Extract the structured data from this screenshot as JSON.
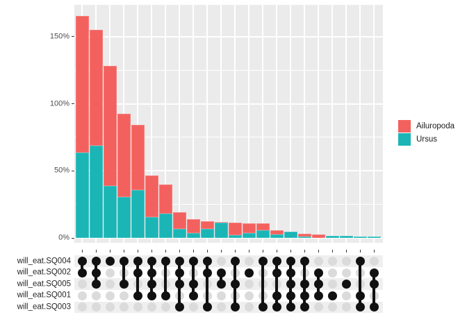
{
  "chart_data": {
    "type": "bar",
    "subtype": "upset-stacked-percent",
    "title": "",
    "xlabel": "",
    "ylabel": "",
    "units": "percent",
    "ylim": [
      0,
      173
    ],
    "grid": "on",
    "y_ticks": [
      {
        "label": "0%",
        "value": 0
      },
      {
        "label": "50%",
        "value": 50
      },
      {
        "label": "100%",
        "value": 100
      },
      {
        "label": "150%",
        "value": 150
      }
    ],
    "y_minor_ticks": [
      25,
      75,
      125
    ],
    "sets": [
      "will_eat.SQ004",
      "will_eat.SQ002",
      "will_eat.SQ005",
      "will_eat.SQ001",
      "will_eat.SQ003"
    ],
    "stack_order": [
      "Ursus",
      "Ailuropoda"
    ],
    "legend": {
      "position": "right",
      "entries": [
        {
          "label": "Ailuropoda",
          "color": "#F3615E"
        },
        {
          "label": "Ursus",
          "color": "#1BB5B6"
        }
      ]
    },
    "colors": {
      "Ailuropoda": "#F3615E",
      "Ursus": "#1BB5B6",
      "panel_background": "#EBEBEB",
      "matrix_stripe": "#EFEFEF",
      "inactive_dot": "#DBDBDB",
      "active_dot": "#111111",
      "axis_text": "#4D4D4D"
    },
    "columns": [
      {
        "sets": [
          "will_eat.SQ004",
          "will_eat.SQ002"
        ],
        "values": {
          "Ursus": 63.6,
          "Ailuropoda": 101.7
        }
      },
      {
        "sets": [
          "will_eat.SQ004",
          "will_eat.SQ002",
          "will_eat.SQ005"
        ],
        "values": {
          "Ursus": 68.6,
          "Ailuropoda": 86.4
        }
      },
      {
        "sets": [
          "will_eat.SQ004"
        ],
        "values": {
          "Ursus": 38.9,
          "Ailuropoda": 89.2
        }
      },
      {
        "sets": [
          "will_eat.SQ004",
          "will_eat.SQ005"
        ],
        "values": {
          "Ursus": 30.6,
          "Ailuropoda": 61.9
        }
      },
      {
        "sets": [
          "will_eat.SQ004",
          "will_eat.SQ002",
          "will_eat.SQ001"
        ],
        "values": {
          "Ursus": 35.8,
          "Ailuropoda": 48.5
        }
      },
      {
        "sets": [
          "will_eat.SQ004",
          "will_eat.SQ002",
          "will_eat.SQ005",
          "will_eat.SQ001"
        ],
        "values": {
          "Ursus": 15.8,
          "Ailuropoda": 30.9
        }
      },
      {
        "sets": [
          "will_eat.SQ004",
          "will_eat.SQ001"
        ],
        "values": {
          "Ursus": 18.1,
          "Ailuropoda": 21.8
        }
      },
      {
        "sets": [
          "will_eat.SQ004",
          "will_eat.SQ002",
          "will_eat.SQ005",
          "will_eat.SQ003"
        ],
        "values": {
          "Ursus": 6.9,
          "Ailuropoda": 12.1
        }
      },
      {
        "sets": [
          "will_eat.SQ004",
          "will_eat.SQ005",
          "will_eat.SQ001"
        ],
        "values": {
          "Ursus": 3.8,
          "Ailuropoda": 10.3
        }
      },
      {
        "sets": [
          "will_eat.SQ004",
          "will_eat.SQ002",
          "will_eat.SQ003"
        ],
        "values": {
          "Ursus": 6.9,
          "Ailuropoda": 5.4
        }
      },
      {
        "sets": [
          "will_eat.SQ002",
          "will_eat.SQ005"
        ],
        "values": {
          "Ursus": 11.3,
          "Ailuropoda": 0.7
        }
      },
      {
        "sets": [
          "will_eat.SQ004",
          "will_eat.SQ005",
          "will_eat.SQ003"
        ],
        "values": {
          "Ursus": 2.0,
          "Ailuropoda": 9.6
        }
      },
      {
        "sets": [
          "will_eat.SQ002"
        ],
        "values": {
          "Ursus": 3.8,
          "Ailuropoda": 7.0
        }
      },
      {
        "sets": [
          "will_eat.SQ004",
          "will_eat.SQ003"
        ],
        "values": {
          "Ursus": 5.6,
          "Ailuropoda": 5.2
        }
      },
      {
        "sets": [
          "will_eat.SQ004",
          "will_eat.SQ002",
          "will_eat.SQ001",
          "will_eat.SQ003"
        ],
        "values": {
          "Ursus": 2.6,
          "Ailuropoda": 3.0
        }
      },
      {
        "sets": [
          "will_eat.SQ004",
          "will_eat.SQ002",
          "will_eat.SQ005",
          "will_eat.SQ001",
          "will_eat.SQ003"
        ],
        "values": {
          "Ursus": 4.7,
          "Ailuropoda": 0
        }
      },
      {
        "sets": [
          "will_eat.SQ004",
          "will_eat.SQ005",
          "will_eat.SQ001",
          "will_eat.SQ003"
        ],
        "values": {
          "Ursus": 1.0,
          "Ailuropoda": 2.4
        }
      },
      {
        "sets": [
          "will_eat.SQ002",
          "will_eat.SQ005",
          "will_eat.SQ001"
        ],
        "values": {
          "Ursus": 0,
          "Ailuropoda": 2.7
        }
      },
      {
        "sets": [
          "will_eat.SQ001"
        ],
        "values": {
          "Ursus": 1.8,
          "Ailuropoda": 0
        }
      },
      {
        "sets": [
          "will_eat.SQ005"
        ],
        "values": {
          "Ursus": 1.8,
          "Ailuropoda": 0
        }
      },
      {
        "sets": [
          "will_eat.SQ004",
          "will_eat.SQ001",
          "will_eat.SQ003"
        ],
        "values": {
          "Ursus": 1.0,
          "Ailuropoda": 0
        }
      },
      {
        "sets": [
          "will_eat.SQ002",
          "will_eat.SQ005",
          "will_eat.SQ003"
        ],
        "values": {
          "Ursus": 1.0,
          "Ailuropoda": 0
        }
      }
    ]
  }
}
